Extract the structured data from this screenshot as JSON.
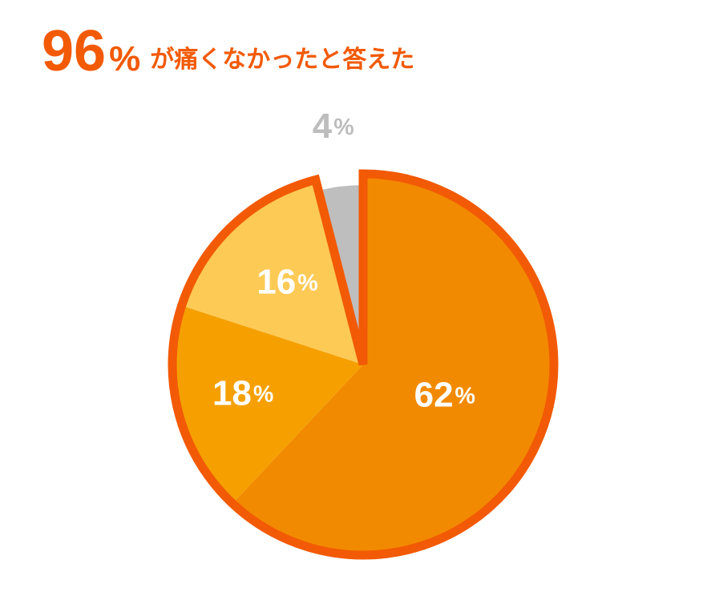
{
  "chart_data": {
    "type": "pie",
    "title_parts": [
      "96",
      "%",
      "が痛くなかったと答えた"
    ],
    "values": [
      62,
      18,
      16,
      4
    ],
    "value_labels": [
      "62%",
      "18%",
      "16%",
      "4%"
    ],
    "colors": [
      "#f28a00",
      "#f5a000",
      "#fdca56",
      "#bebebe"
    ],
    "label_colors": [
      "#ffffff",
      "#ffffff",
      "#ffffff",
      "#bdbdbd"
    ],
    "highlight_color": "#f25a05"
  }
}
